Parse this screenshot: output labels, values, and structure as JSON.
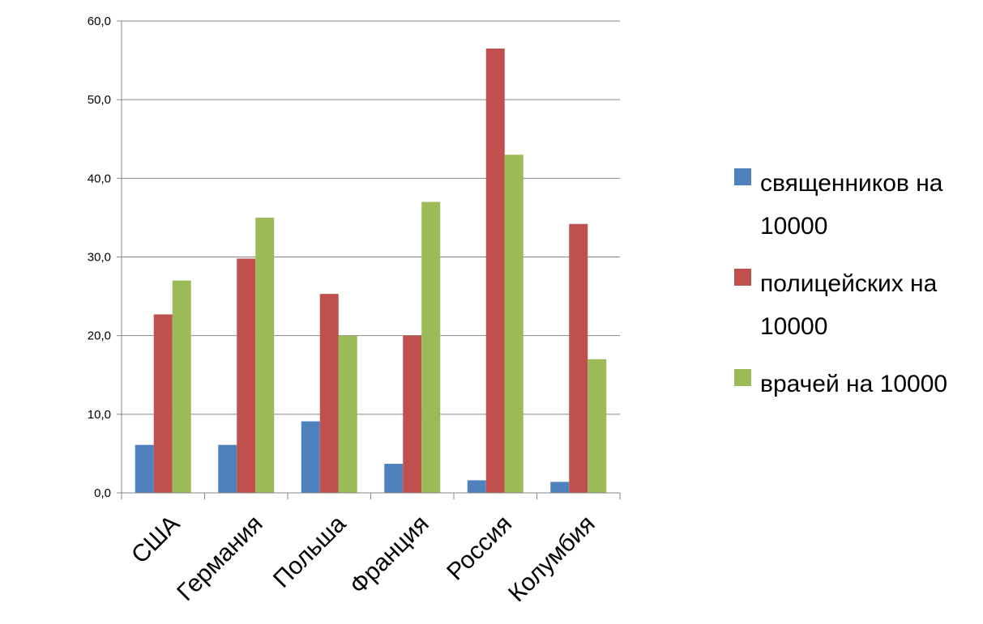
{
  "chart_data": {
    "type": "bar",
    "title": "",
    "xlabel": "",
    "ylabel": "",
    "categories": [
      "США",
      "Германия",
      "Польша",
      "Франция",
      "Россия",
      "Колумбия"
    ],
    "series": [
      {
        "name": "священников на 10000",
        "color": "#4F81BD",
        "values": [
          6.1,
          6.1,
          9.1,
          3.7,
          1.6,
          1.4
        ]
      },
      {
        "name": "полицейских на 10000",
        "color": "#C0504D",
        "values": [
          22.7,
          29.8,
          25.3,
          20.0,
          56.5,
          34.2
        ]
      },
      {
        "name": "врачей на 10000",
        "color": "#9BBB59",
        "values": [
          27.0,
          35.0,
          20.0,
          37.0,
          43.0,
          17.0
        ]
      }
    ],
    "ylim": [
      0,
      60
    ],
    "yticks": [
      "0,0",
      "10,0",
      "20,0",
      "30,0",
      "40,0",
      "50,0",
      "60,0"
    ],
    "grid": true,
    "legend_position": "right"
  }
}
